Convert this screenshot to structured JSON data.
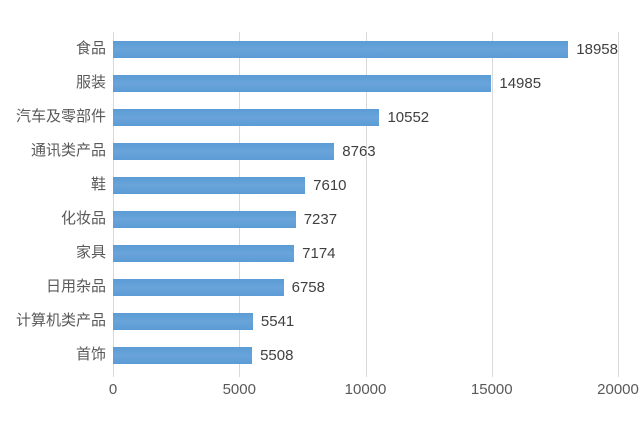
{
  "chart_data": {
    "type": "bar",
    "orientation": "horizontal",
    "title": "",
    "xlabel": "",
    "ylabel": "",
    "categories": [
      "食品",
      "服装",
      "汽车及零部件",
      "通讯类产品",
      "鞋",
      "化妆品",
      "家具",
      "日用杂品",
      "计算机类产品",
      "首饰"
    ],
    "values": [
      18958,
      14985,
      10552,
      8763,
      7610,
      7237,
      7174,
      6758,
      5541,
      5508
    ],
    "value_labels": [
      "18958",
      "14985",
      "10552",
      "8763",
      "7610",
      "7237",
      "7174",
      "6758",
      "5541",
      "5508"
    ],
    "xlim": [
      0,
      20000
    ],
    "x_ticks": [
      0,
      5000,
      10000,
      15000,
      20000
    ],
    "x_tick_labels": [
      "0",
      "5000",
      "10000",
      "15000",
      "20000"
    ],
    "grid": true,
    "legend": false,
    "colors": {
      "bar": "#5B9BD5",
      "bar_gradient_mid": "#69A4DA",
      "gridline": "#D9D9D9",
      "category_label": "#595959",
      "value_label": "#404040",
      "axis_tick_label": "#595959",
      "background": "#FFFFFF"
    }
  }
}
